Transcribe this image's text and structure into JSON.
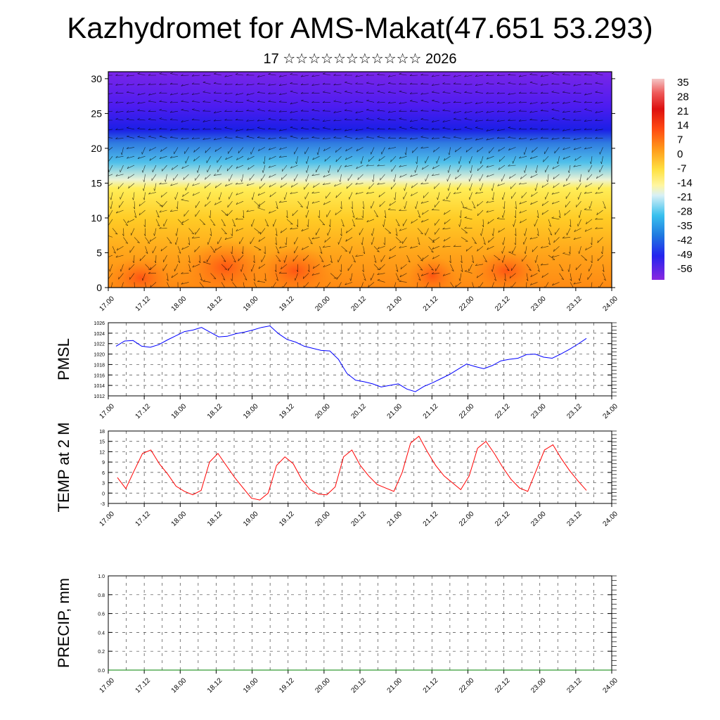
{
  "header": {
    "title": "Kazhydromet for AMS-Makat(47.651 53.293)",
    "subtitle": "17 ☆☆☆☆☆☆☆☆☆☆☆ 2026"
  },
  "chart_data": [
    {
      "type": "heatmap",
      "name": "temperature-height-section",
      "x_tick_labels": [
        "17.00",
        "17.12",
        "18.00",
        "18.12",
        "19.00",
        "19.12",
        "20.00",
        "20.12",
        "21.00",
        "21.12",
        "22.00",
        "22.12",
        "23.00",
        "23.12",
        "24.00"
      ],
      "y_tick_labels": [
        "0",
        "5",
        "10",
        "15",
        "20",
        "25",
        "30"
      ],
      "ylim": [
        0,
        31
      ],
      "colorbar_labels": [
        "35",
        "28",
        "21",
        "14",
        "7",
        "0",
        "-7",
        "-14",
        "-21",
        "-28",
        "-35",
        "-42",
        "-49",
        "-56"
      ],
      "overlay": "wind vectors"
    },
    {
      "type": "line",
      "name": "pmsl",
      "ylabel": "PMSL",
      "color": "#0000ff",
      "y_tick_labels": [
        "1026",
        "1024",
        "1022",
        "1020",
        "1018",
        "1016",
        "1014",
        "1012"
      ],
      "ylim": [
        1012,
        1026
      ],
      "x_tick_labels": [
        "17.00",
        "17.12",
        "18.00",
        "18.12",
        "19.00",
        "19.12",
        "20.00",
        "20.12",
        "21.00",
        "21.12",
        "22.00",
        "22.12",
        "23.00",
        "23.12",
        "24.00"
      ],
      "values": [
        1021.5,
        1022.5,
        1022.6,
        1021.5,
        1021.3,
        1021.8,
        1022.7,
        1023.5,
        1024.3,
        1024.6,
        1025.1,
        1024.2,
        1023.3,
        1023.4,
        1023.9,
        1024.2,
        1024.6,
        1025.1,
        1025.4,
        1023.9,
        1022.8,
        1022.3,
        1021.5,
        1021.1,
        1020.7,
        1020.6,
        1019.0,
        1016.3,
        1015.0,
        1014.7,
        1014.3,
        1013.7,
        1014.0,
        1014.3,
        1013.3,
        1012.8,
        1013.8,
        1014.5,
        1015.3,
        1016.1,
        1017.1,
        1018.1,
        1017.6,
        1017.2,
        1017.8,
        1018.7,
        1019.0,
        1019.2,
        1019.9,
        1020.0,
        1019.4,
        1019.2,
        1020.0,
        1020.9,
        1021.9,
        1023.0
      ]
    },
    {
      "type": "line",
      "name": "temp-2m",
      "ylabel": "TEMP at 2 M",
      "color": "#ff0000",
      "y_tick_labels": [
        "18",
        "15",
        "12",
        "9",
        "6",
        "3",
        "0",
        "-3"
      ],
      "ylim": [
        -3,
        18
      ],
      "x_tick_labels": [
        "17.00",
        "17.12",
        "18.00",
        "18.12",
        "19.00",
        "19.12",
        "20.00",
        "20.12",
        "21.00",
        "21.12",
        "22.00",
        "22.12",
        "23.00",
        "23.12",
        "24.00"
      ],
      "values": [
        4.5,
        1.3,
        6.5,
        11.5,
        12.5,
        8.5,
        5.5,
        2.0,
        0.5,
        -0.5,
        0.8,
        9.0,
        11.5,
        8.0,
        4.5,
        1.5,
        -1.5,
        -2.0,
        0.0,
        8.0,
        10.5,
        8.5,
        4.0,
        1.0,
        -0.3,
        -0.5,
        1.8,
        10.5,
        12.5,
        8.0,
        5.0,
        2.5,
        1.5,
        0.5,
        6.0,
        14.5,
        16.5,
        12.0,
        8.0,
        5.0,
        3.0,
        1.0,
        5.0,
        13.0,
        15.0,
        11.5,
        7.5,
        4.0,
        1.5,
        0.5,
        6.5,
        12.5,
        14.0,
        10.0,
        6.5,
        3.5,
        0.8
      ]
    },
    {
      "type": "line",
      "name": "precip",
      "ylabel": "PRECIP, mm",
      "color": "#008000",
      "y_tick_labels": [
        "1.0",
        "0.8",
        "0.6",
        "0.4",
        "0.2",
        "0.0"
      ],
      "ylim": [
        0,
        1
      ],
      "x_tick_labels": [
        "17.00",
        "17.12",
        "18.00",
        "18.12",
        "19.00",
        "19.12",
        "20.00",
        "20.12",
        "21.00",
        "21.12",
        "22.00",
        "22.12",
        "23.00",
        "23.12",
        "24.00"
      ],
      "values": [
        0,
        0,
        0,
        0,
        0,
        0,
        0,
        0,
        0,
        0,
        0,
        0,
        0,
        0,
        0,
        0,
        0,
        0,
        0,
        0,
        0,
        0,
        0,
        0,
        0,
        0,
        0,
        0,
        0,
        0,
        0,
        0,
        0,
        0,
        0,
        0,
        0,
        0,
        0,
        0,
        0,
        0,
        0,
        0,
        0,
        0,
        0,
        0,
        0,
        0,
        0,
        0,
        0,
        0,
        0,
        0,
        0
      ]
    }
  ]
}
